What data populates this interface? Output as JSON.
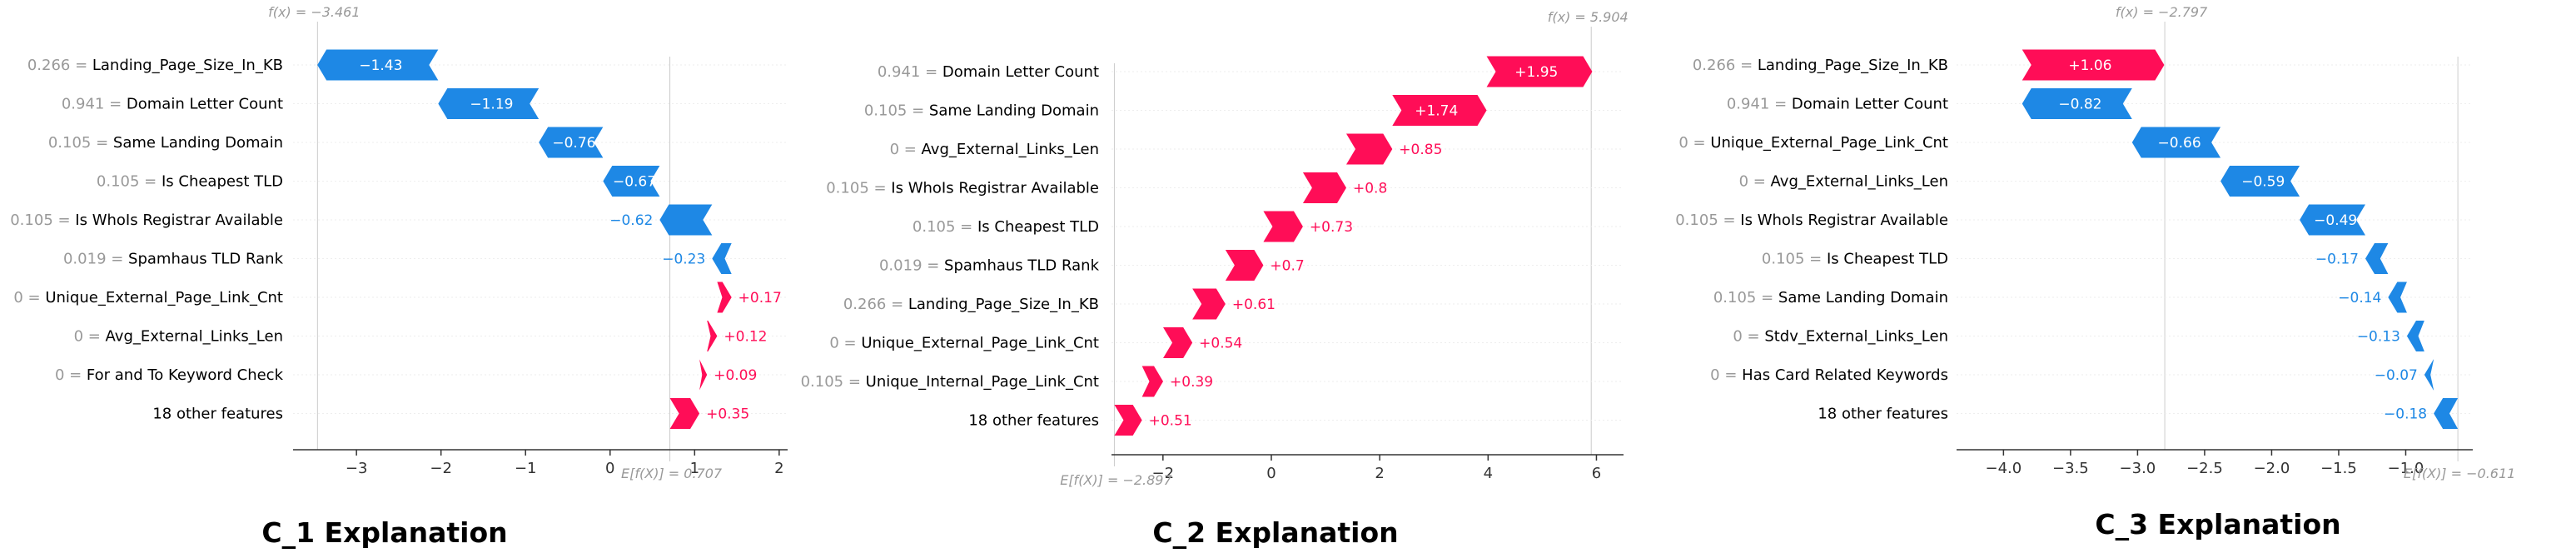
{
  "colors": {
    "positive": "#ff0d57",
    "negative": "#1e88e5",
    "gray": "#999999",
    "axis": "#333333"
  },
  "chart_data": [
    {
      "type": "waterfall",
      "title": "C_1 Explanation",
      "fx_label": "f(x) = −3.461",
      "ef_label": "E[f(X)] = 0.707",
      "base_value": 0.707,
      "fx": -3.461,
      "xlim": [
        -3.75,
        2.1
      ],
      "ticks": [
        -3,
        -2,
        -1,
        0,
        1,
        2
      ],
      "features": [
        {
          "value_label": "0.266",
          "name": "Landing_Page_Size_In_KB",
          "contribution": -1.43,
          "contrib_label": "−1.43"
        },
        {
          "value_label": "0.941",
          "name": "Domain Letter Count",
          "contribution": -1.19,
          "contrib_label": "−1.19"
        },
        {
          "value_label": "0.105",
          "name": "Same Landing Domain",
          "contribution": -0.76,
          "contrib_label": "−0.76"
        },
        {
          "value_label": "0.105",
          "name": "Is Cheapest TLD",
          "contribution": -0.67,
          "contrib_label": "−0.67"
        },
        {
          "value_label": "0.105",
          "name": "Is WhoIs Registrar Available",
          "contribution": -0.62,
          "contrib_label": "−0.62"
        },
        {
          "value_label": "0.019",
          "name": "Spamhaus TLD Rank",
          "contribution": -0.23,
          "contrib_label": "−0.23"
        },
        {
          "value_label": "0",
          "name": "Unique_External_Page_Link_Cnt",
          "contribution": 0.17,
          "contrib_label": "+0.17"
        },
        {
          "value_label": "0",
          "name": "Avg_External_Links_Len",
          "contribution": 0.12,
          "contrib_label": "+0.12"
        },
        {
          "value_label": "0",
          "name": "For and To Keyword Check",
          "contribution": 0.09,
          "contrib_label": "+0.09"
        },
        {
          "value_label": "",
          "name": "18 other features",
          "contribution": 0.35,
          "contrib_label": "+0.35"
        }
      ]
    },
    {
      "type": "waterfall",
      "title": "C_2 Explanation",
      "fx_label": "f(x) = 5.904",
      "ef_label": "E[f(X)] = −2.897",
      "base_value": -2.897,
      "fx": 5.904,
      "xlim": [
        -2.95,
        6.5
      ],
      "ticks": [
        -2,
        0,
        2,
        4,
        6
      ],
      "features": [
        {
          "value_label": "0.941",
          "name": "Domain Letter Count",
          "contribution": 1.95,
          "contrib_label": "+1.95"
        },
        {
          "value_label": "0.105",
          "name": "Same Landing Domain",
          "contribution": 1.74,
          "contrib_label": "+1.74"
        },
        {
          "value_label": "0",
          "name": "Avg_External_Links_Len",
          "contribution": 0.85,
          "contrib_label": "+0.85"
        },
        {
          "value_label": "0.105",
          "name": "Is WhoIs Registrar Available",
          "contribution": 0.8,
          "contrib_label": "+0.8"
        },
        {
          "value_label": "0.105",
          "name": "Is Cheapest TLD",
          "contribution": 0.73,
          "contrib_label": "+0.73"
        },
        {
          "value_label": "0.019",
          "name": "Spamhaus TLD Rank",
          "contribution": 0.7,
          "contrib_label": "+0.7"
        },
        {
          "value_label": "0.266",
          "name": "Landing_Page_Size_In_KB",
          "contribution": 0.61,
          "contrib_label": "+0.61"
        },
        {
          "value_label": "0",
          "name": "Unique_External_Page_Link_Cnt",
          "contribution": 0.54,
          "contrib_label": "+0.54"
        },
        {
          "value_label": "0.105",
          "name": "Unique_Internal_Page_Link_Cnt",
          "contribution": 0.39,
          "contrib_label": "+0.39"
        },
        {
          "value_label": "",
          "name": "18 other features",
          "contribution": 0.51,
          "contrib_label": "+0.51"
        }
      ]
    },
    {
      "type": "waterfall",
      "title": "C_3 Explanation",
      "fx_label": "f(x) = −2.797",
      "ef_label": "E[f(X)] = −0.611",
      "base_value": -0.611,
      "fx": -2.797,
      "xlim": [
        -4.35,
        -0.5
      ],
      "ticks": [
        -4.0,
        -3.5,
        -3.0,
        -2.5,
        -2.0,
        -1.5,
        -1.0
      ],
      "features": [
        {
          "value_label": "0.266",
          "name": "Landing_Page_Size_In_KB",
          "contribution": 1.06,
          "contrib_label": "+1.06"
        },
        {
          "value_label": "0.941",
          "name": "Domain Letter Count",
          "contribution": -0.82,
          "contrib_label": "−0.82"
        },
        {
          "value_label": "0",
          "name": "Unique_External_Page_Link_Cnt",
          "contribution": -0.66,
          "contrib_label": "−0.66"
        },
        {
          "value_label": "0",
          "name": "Avg_External_Links_Len",
          "contribution": -0.59,
          "contrib_label": "−0.59"
        },
        {
          "value_label": "0.105",
          "name": "Is WhoIs Registrar Available",
          "contribution": -0.49,
          "contrib_label": "−0.49"
        },
        {
          "value_label": "0.105",
          "name": "Is Cheapest TLD",
          "contribution": -0.17,
          "contrib_label": "−0.17"
        },
        {
          "value_label": "0.105",
          "name": "Same Landing Domain",
          "contribution": -0.14,
          "contrib_label": "−0.14"
        },
        {
          "value_label": "0",
          "name": "Stdv_External_Links_Len",
          "contribution": -0.13,
          "contrib_label": "−0.13"
        },
        {
          "value_label": "0",
          "name": "Has Card Related Keywords",
          "contribution": -0.07,
          "contrib_label": "−0.07"
        },
        {
          "value_label": "",
          "name": "18 other features",
          "contribution": -0.18,
          "contrib_label": "−0.18"
        }
      ]
    }
  ]
}
